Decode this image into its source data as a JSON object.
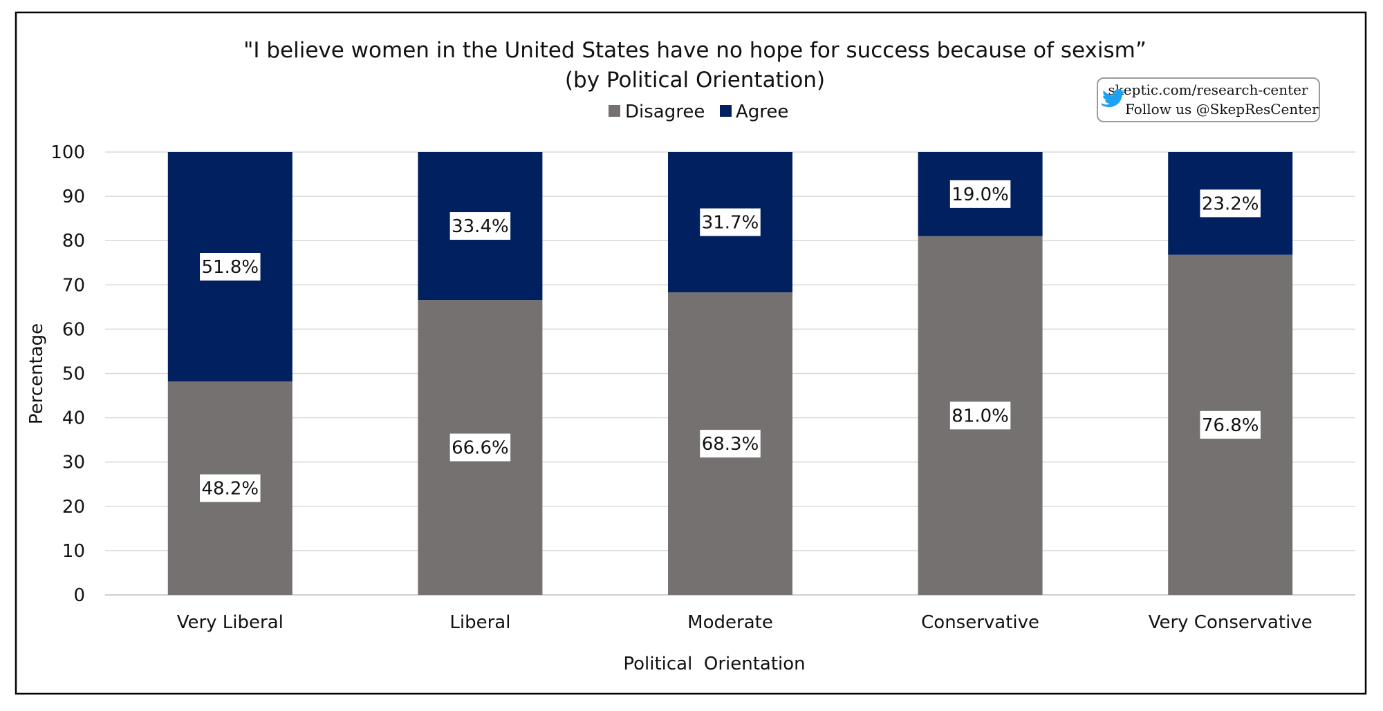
{
  "chart_data": {
    "type": "bar",
    "stacked": true,
    "title": "\"I believe women in the United States have no hope for success because of sexism”",
    "subtitle": "(by Political Orientation)",
    "xlabel": "Political  Orientation",
    "ylabel": "Percentage",
    "ylim": [
      0,
      100
    ],
    "yticks": [
      0,
      10,
      20,
      30,
      40,
      50,
      60,
      70,
      80,
      90,
      100
    ],
    "grid": true,
    "legend_position": "top",
    "categories": [
      "Very Liberal",
      "Liberal",
      "Moderate",
      "Conservative",
      "Very Conservative"
    ],
    "series": [
      {
        "name": "Disagree",
        "color": "#767171",
        "values": [
          48.2,
          66.6,
          68.3,
          81.0,
          76.8
        ],
        "labels": [
          "48.2%",
          "66.6%",
          "68.3%",
          "81.0%",
          "76.8%"
        ]
      },
      {
        "name": "Agree",
        "color": "#002060",
        "values": [
          51.8,
          33.4,
          31.7,
          19.0,
          23.2
        ],
        "labels": [
          "51.8%",
          "33.4%",
          "31.7%",
          "19.0%",
          "23.2%"
        ]
      }
    ]
  },
  "attribution": {
    "website": "skeptic.com/research-center",
    "twitter": "Follow us @SkepResCenter",
    "twitter_icon": "twitter-bird-icon",
    "link_color": "#1F4E9A",
    "twitter_color": "#1DA1F2"
  }
}
